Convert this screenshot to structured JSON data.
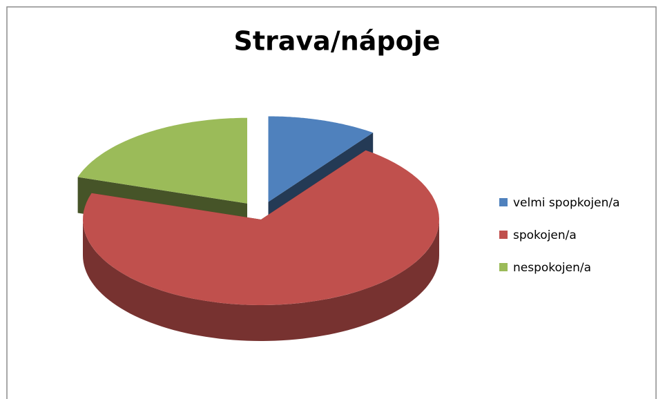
{
  "chart_data": {
    "type": "pie",
    "title": "Strava/nápoje",
    "categories": [
      "velmi spopkojen/a",
      "spokojen/a",
      "nespokojen/a"
    ],
    "values": [
      10,
      70,
      20
    ],
    "colors": [
      "#4f81bd",
      "#c0504d",
      "#9bbb59"
    ],
    "legend": "right"
  }
}
